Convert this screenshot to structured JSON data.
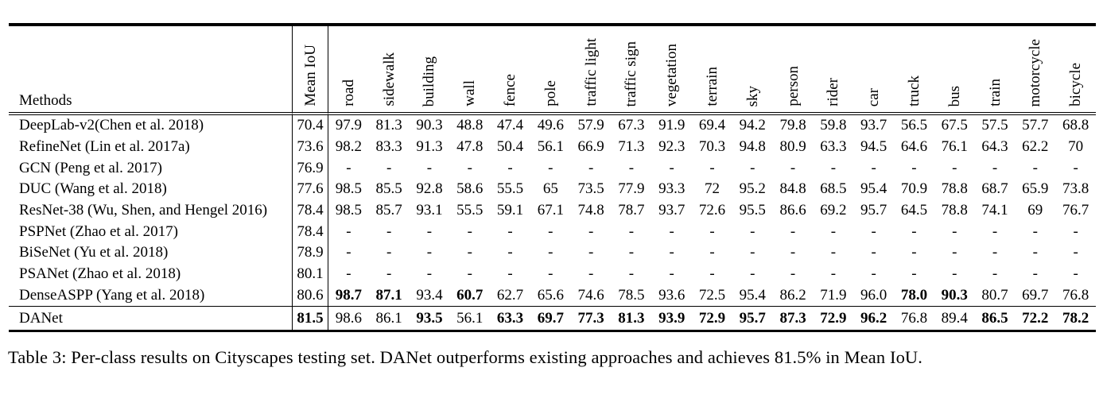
{
  "page": {
    "background": "#ffffff",
    "text_color": "#000000"
  },
  "table": {
    "methods_header": "Methods",
    "columns": [
      "Mean IoU",
      "road",
      "sidewalk",
      "building",
      "wall",
      "fence",
      "pole",
      "traffic light",
      "traffic sign",
      "vegetation",
      "terrain",
      "sky",
      "person",
      "rider",
      "car",
      "truck",
      "bus",
      "train",
      "motorcycle",
      "bicycle"
    ],
    "rows": [
      {
        "method": "DeepLab-v2(Chen et al. 2018)",
        "mean_iou": "70.4",
        "mean_bold": false,
        "separator_above": false,
        "values": [
          "97.9",
          "81.3",
          "90.3",
          "48.8",
          "47.4",
          "49.6",
          "57.9",
          "67.3",
          "91.9",
          "69.4",
          "94.2",
          "79.8",
          "59.8",
          "93.7",
          "56.5",
          "67.5",
          "57.5",
          "57.7",
          "68.8"
        ],
        "bold": []
      },
      {
        "method": "RefineNet (Lin et al. 2017a)",
        "mean_iou": "73.6",
        "mean_bold": false,
        "separator_above": false,
        "values": [
          "98.2",
          "83.3",
          "91.3",
          "47.8",
          "50.4",
          "56.1",
          "66.9",
          "71.3",
          "92.3",
          "70.3",
          "94.8",
          "80.9",
          "63.3",
          "94.5",
          "64.6",
          "76.1",
          "64.3",
          "62.2",
          "70"
        ],
        "bold": []
      },
      {
        "method": "GCN (Peng et al. 2017)",
        "mean_iou": "76.9",
        "mean_bold": false,
        "separator_above": false,
        "values": [
          "-",
          "-",
          "-",
          "-",
          "-",
          "-",
          "-",
          "-",
          "-",
          "-",
          "-",
          "-",
          "-",
          "-",
          "-",
          "-",
          "-",
          "-",
          "-"
        ],
        "bold": []
      },
      {
        "method": "DUC (Wang et al. 2018)",
        "mean_iou": "77.6",
        "mean_bold": false,
        "separator_above": false,
        "values": [
          "98.5",
          "85.5",
          "92.8",
          "58.6",
          "55.5",
          "65",
          "73.5",
          "77.9",
          "93.3",
          "72",
          "95.2",
          "84.8",
          "68.5",
          "95.4",
          "70.9",
          "78.8",
          "68.7",
          "65.9",
          "73.8"
        ],
        "bold": []
      },
      {
        "method": "ResNet-38 (Wu, Shen, and Hengel 2016)",
        "mean_iou": "78.4",
        "mean_bold": false,
        "separator_above": false,
        "values": [
          "98.5",
          "85.7",
          "93.1",
          "55.5",
          "59.1",
          "67.1",
          "74.8",
          "78.7",
          "93.7",
          "72.6",
          "95.5",
          "86.6",
          "69.2",
          "95.7",
          "64.5",
          "78.8",
          "74.1",
          "69",
          "76.7"
        ],
        "bold": []
      },
      {
        "method": "PSPNet (Zhao et al. 2017)",
        "mean_iou": "78.4",
        "mean_bold": false,
        "separator_above": false,
        "values": [
          "-",
          "-",
          "-",
          "-",
          "-",
          "-",
          "-",
          "-",
          "-",
          "-",
          "-",
          "-",
          "-",
          "-",
          "-",
          "-",
          "-",
          "-",
          "-"
        ],
        "bold": []
      },
      {
        "method": "BiSeNet (Yu et al. 2018)",
        "mean_iou": "78.9",
        "mean_bold": false,
        "separator_above": false,
        "values": [
          "-",
          "-",
          "-",
          "-",
          "-",
          "-",
          "-",
          "-",
          "-",
          "-",
          "-",
          "-",
          "-",
          "-",
          "-",
          "-",
          "-",
          "-",
          "-"
        ],
        "bold": []
      },
      {
        "method": "PSANet (Zhao et al. 2018)",
        "mean_iou": "80.1",
        "mean_bold": false,
        "separator_above": false,
        "values": [
          "-",
          "-",
          "-",
          "-",
          "-",
          "-",
          "-",
          "-",
          "-",
          "-",
          "-",
          "-",
          "-",
          "-",
          "-",
          "-",
          "-",
          "-",
          "-"
        ],
        "bold": []
      },
      {
        "method": "DenseASPP (Yang et al. 2018)",
        "mean_iou": "80.6",
        "mean_bold": false,
        "separator_above": false,
        "values": [
          "98.7",
          "87.1",
          "93.4",
          "60.7",
          "62.7",
          "65.6",
          "74.6",
          "78.5",
          "93.6",
          "72.5",
          "95.4",
          "86.2",
          "71.9",
          "96.0",
          "78.0",
          "90.3",
          "80.7",
          "69.7",
          "76.8"
        ],
        "bold": [
          0,
          1,
          3,
          14,
          15
        ]
      },
      {
        "method": "DANet",
        "mean_iou": "81.5",
        "mean_bold": true,
        "separator_above": true,
        "values": [
          "98.6",
          "86.1",
          "93.5",
          "56.1",
          "63.3",
          "69.7",
          "77.3",
          "81.3",
          "93.9",
          "72.9",
          "95.7",
          "87.3",
          "72.9",
          "96.2",
          "76.8",
          "89.4",
          "86.5",
          "72.2",
          "78.2"
        ],
        "bold": [
          2,
          4,
          5,
          6,
          7,
          8,
          9,
          10,
          11,
          12,
          13,
          16,
          17,
          18
        ]
      }
    ]
  },
  "caption": "Table 3: Per-class results on Cityscapes testing set. DANet outperforms existing approaches and achieves 81.5% in Mean IoU."
}
